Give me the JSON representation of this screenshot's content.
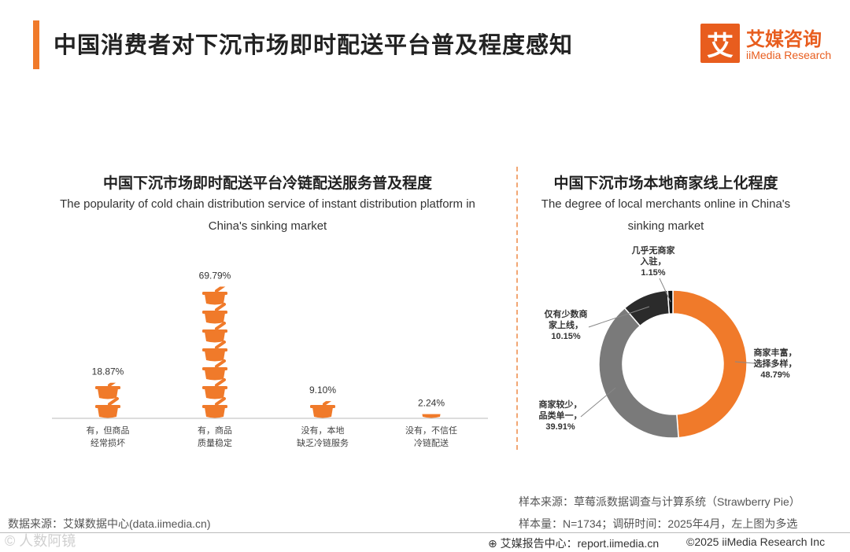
{
  "header": {
    "title": "中国消费者对下沉市场即时配送平台普及程度感知"
  },
  "logo": {
    "mark": "艾",
    "name_cn": "艾媒咨询",
    "name_en": "iiMedia Research"
  },
  "left_chart": {
    "title_cn": "中国下沉市场即时配送平台冷链配送服务普及程度",
    "subtitle_en_line1": "The popularity of cold chain distribution service of instant distribution platform in",
    "subtitle_en_line2": "China's sinking market"
  },
  "right_chart": {
    "title_cn": "中国下沉市场本地商家线上化程度",
    "subtitle_en_line1": "The degree of local merchants online in China's",
    "subtitle_en_line2": "sinking market"
  },
  "chart_data": [
    {
      "type": "bar",
      "style": "pictogram",
      "title": "中国下沉市场即时配送平台冷链配送服务普及程度",
      "categories": [
        [
          "有，但商品",
          "经常损坏"
        ],
        [
          "有，商品",
          "质量稳定"
        ],
        [
          "没有，本地",
          "缺乏冷链服务"
        ],
        [
          "没有，不信任",
          "冷链配送"
        ]
      ],
      "values": [
        18.87,
        69.79,
        9.1,
        2.24
      ],
      "labels": [
        "18.87%",
        "69.79%",
        "9.10%",
        "2.24%"
      ],
      "unit": "%",
      "color": "#F07A2A"
    },
    {
      "type": "pie",
      "style": "donut",
      "title": "中国下沉市场本地商家线上化程度",
      "slices": [
        {
          "label": [
            "商家丰富，",
            "选择多样，"
          ],
          "value": 48.79,
          "value_label": "48.79%",
          "color": "#F07A2A"
        },
        {
          "label": [
            "商家较少，",
            "品类单一，"
          ],
          "value": 39.91,
          "value_label": "39.91%",
          "color": "#7A7A7A"
        },
        {
          "label": [
            "仅有少数商",
            "家上线，"
          ],
          "value": 10.15,
          "value_label": "10.15%",
          "color": "#2B2B2B"
        },
        {
          "label": [
            "几乎无商家",
            "入驻，"
          ],
          "value": 1.15,
          "value_label": "1.15%",
          "color": "#111111"
        }
      ]
    }
  ],
  "footer": {
    "source": "数据来源：艾媒数据中心(data.iimedia.cn)",
    "sample_source": "样本来源：草莓派数据调查与计算系统（Strawberry Pie）",
    "sample_size": "样本量：N=1734；调研时间：2025年4月，左上图为多选",
    "site": "艾媒报告中心：report.iimedia.cn",
    "copyright": "©2025  iiMedia Research  Inc",
    "watermark": "© 人数阿镜"
  }
}
